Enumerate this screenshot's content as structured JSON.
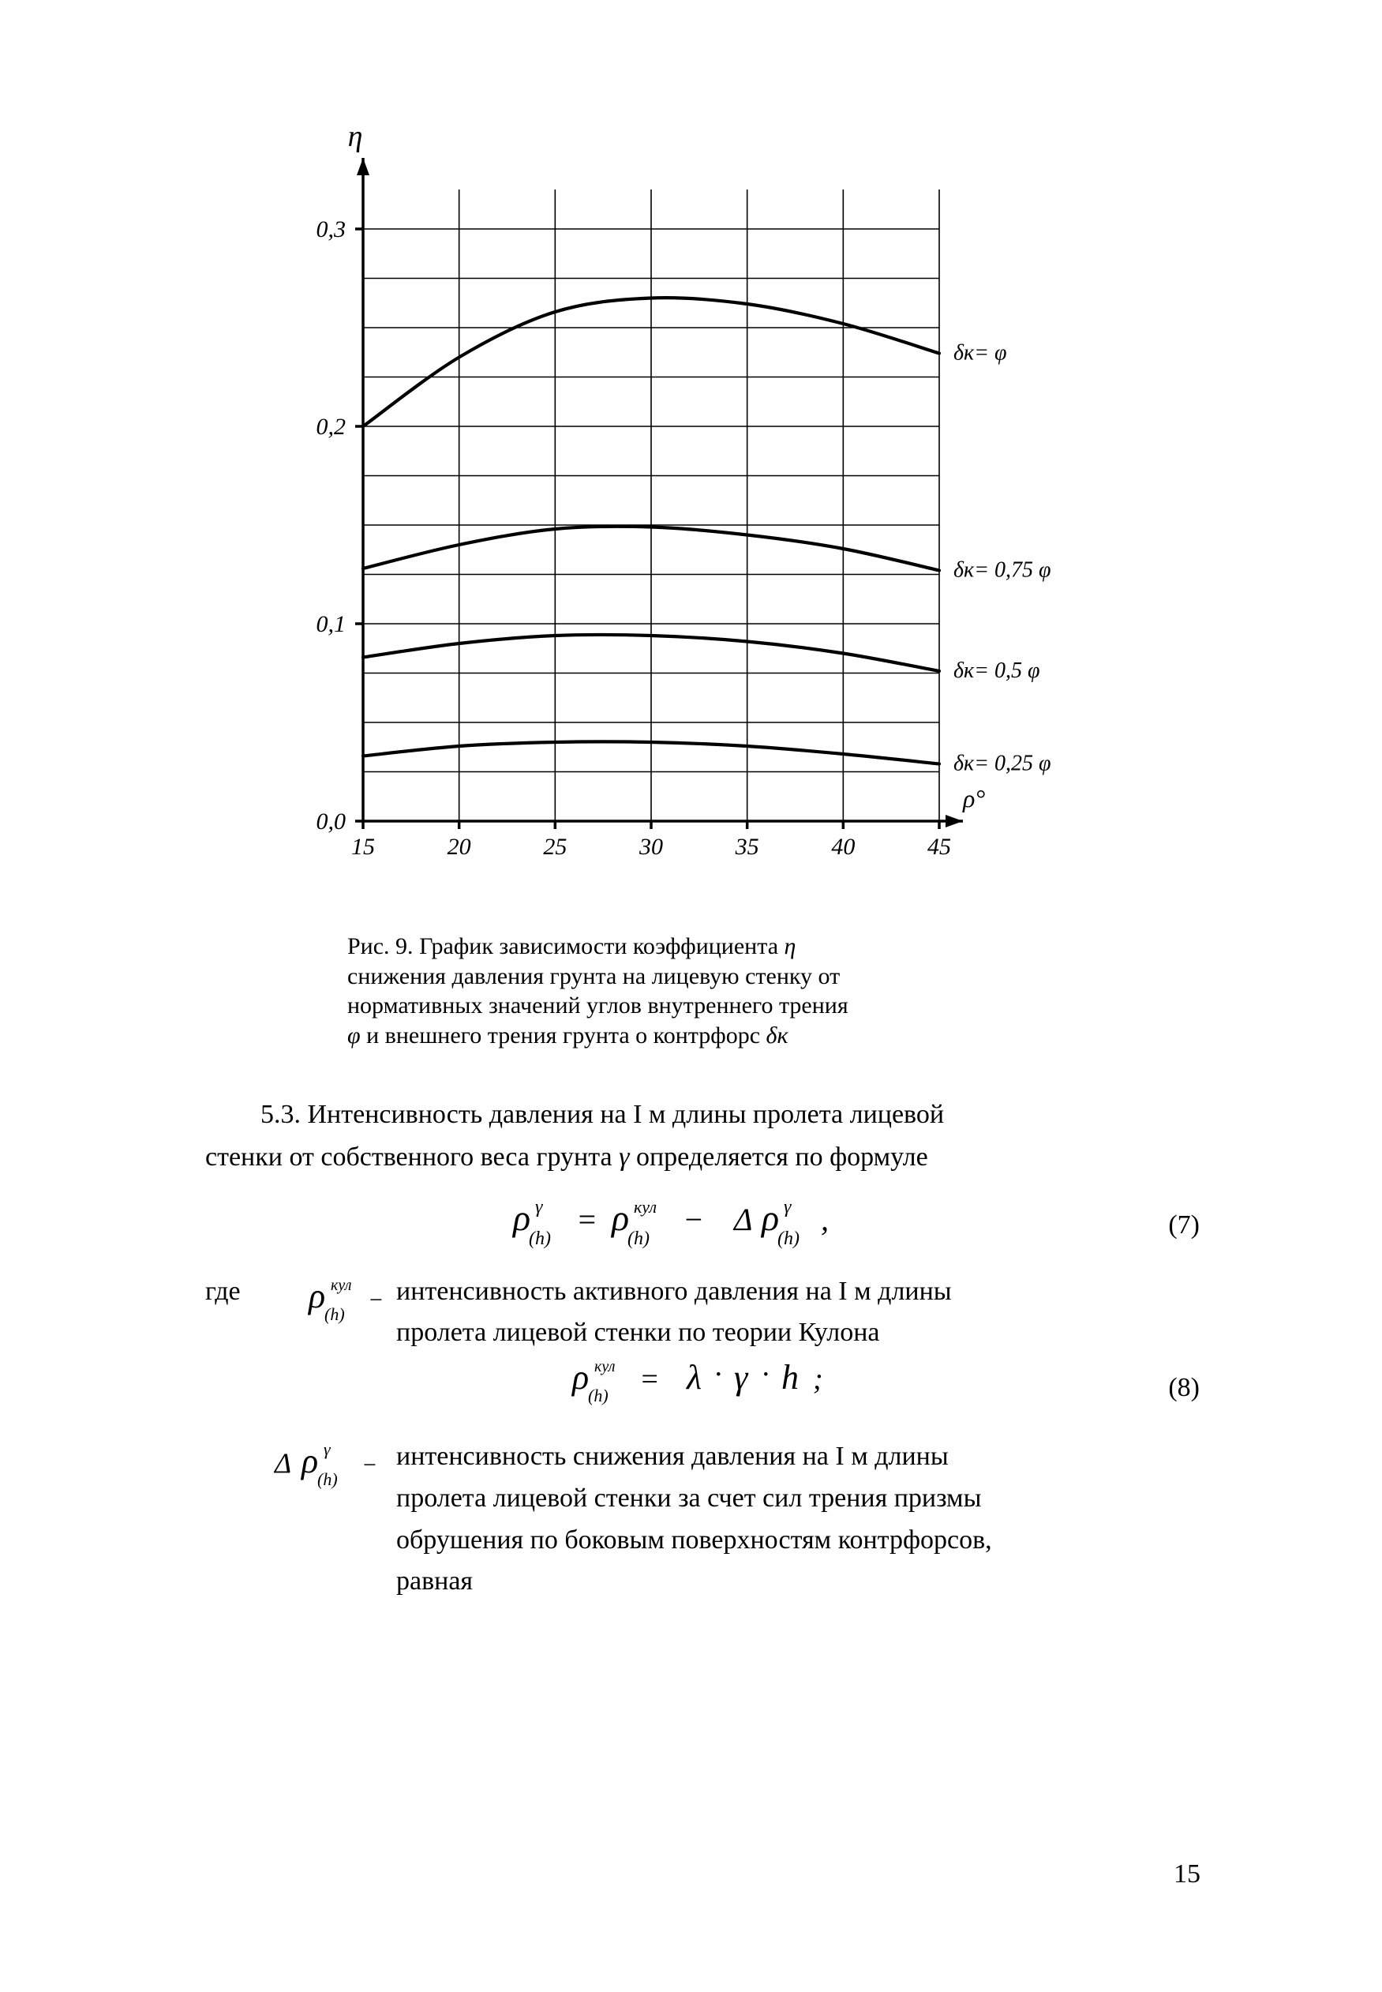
{
  "chart": {
    "type": "line",
    "background_color": "#ffffff",
    "grid_color": "#000000",
    "axis_color": "#000000",
    "curve_color": "#000000",
    "text_color": "#000000",
    "axis_stroke_width": 3.5,
    "grid_stroke_width": 1.6,
    "curve_stroke_width": 4.2,
    "tick_fontsize": 30,
    "x_axis": {
      "label": "ρ°",
      "label_fontsize": 32,
      "min": 15,
      "max": 45,
      "ticks": [
        15,
        20,
        25,
        30,
        35,
        40,
        45
      ],
      "grid_lines": [
        15,
        20,
        25,
        30,
        35,
        40,
        45
      ]
    },
    "y_axis": {
      "label": "η",
      "label_fontsize": 38,
      "min": 0.0,
      "max": 0.32,
      "ticks": [
        0.0,
        0.1,
        0.2,
        0.3
      ],
      "tick_labels": [
        "0,0",
        "0,1",
        "0,2",
        "0,3"
      ],
      "grid_step": 0.025
    },
    "curves": [
      {
        "label": "δк= φ",
        "x": [
          15,
          20,
          25,
          30,
          35,
          40,
          45
        ],
        "y": [
          0.2,
          0.235,
          0.258,
          0.265,
          0.262,
          0.252,
          0.237
        ]
      },
      {
        "label": "δк= 0,75 φ",
        "x": [
          15,
          20,
          25,
          30,
          35,
          40,
          45
        ],
        "y": [
          0.128,
          0.14,
          0.148,
          0.149,
          0.145,
          0.138,
          0.127
        ]
      },
      {
        "label": "δк= 0,5 φ",
        "x": [
          15,
          20,
          25,
          30,
          35,
          40,
          45
        ],
        "y": [
          0.083,
          0.09,
          0.094,
          0.094,
          0.091,
          0.085,
          0.076
        ]
      },
      {
        "label": "δк= 0,25 φ",
        "x": [
          15,
          20,
          25,
          30,
          35,
          40,
          45
        ],
        "y": [
          0.033,
          0.038,
          0.04,
          0.04,
          0.038,
          0.034,
          0.029
        ]
      }
    ]
  },
  "caption": {
    "prefix": "Рис. 9. ",
    "line1": "График зависимости коэффициента  ",
    "sym1": "η",
    "line2": "снижения давления грунта на лицевую стенку от",
    "line3": "нормативных значений углов внутреннего трения",
    "line4a": "φ",
    "line4b": "  и внешнего трения грунта о контрфорс  ",
    "line4c": "δк"
  },
  "paragraph": {
    "lead": "5.3. Интенсивность давления на I м длины пролета лицевой ",
    "rest1": "стенки от собственного веса грунта  ",
    "sym_gamma": "γ",
    "rest2": " определяется по формуле"
  },
  "formula7": {
    "lhs_sym": "ρ",
    "lhs_sup": "γ",
    "lhs_sub": "(h)",
    "rhs1_sym": "ρ",
    "rhs1_sup": "кул",
    "rhs1_sub": "(h)",
    "minus": " − ",
    "rhs2_pre": "Δ",
    "rhs2_sym": "ρ",
    "rhs2_sup": "γ",
    "rhs2_sub": "(h)",
    "tail": " ,",
    "num": "(7)"
  },
  "def_intro": "где",
  "def1": {
    "sym_base": "ρ",
    "sym_sup": "кул",
    "sym_sub": "(h)",
    "dash": "−",
    "text1": "интенсивность активного давления на I м длины",
    "text2": "пролета лицевой стенки по теории Кулона"
  },
  "formula8": {
    "lhs_sym": "ρ",
    "lhs_sup": "кул",
    "lhs_sub": "(h)",
    "eq": " = ",
    "la": "λ",
    "dot1": "·",
    "ga": "γ",
    "dot2": "·",
    "h": "h",
    "tail": " ;",
    "num": "(8)"
  },
  "def2": {
    "sym_pre": "Δ",
    "sym_base": "ρ",
    "sym_sup": "γ",
    "sym_sub": "(h)",
    "dash": "−",
    "text1": "интенсивность снижения давления на I м длины",
    "text2": "пролета лицевой стенки за счет сил трения призмы",
    "text3": "обрушения по боковым поверхностям контрфорсов,",
    "text4": "равная"
  },
  "page_number": "15"
}
